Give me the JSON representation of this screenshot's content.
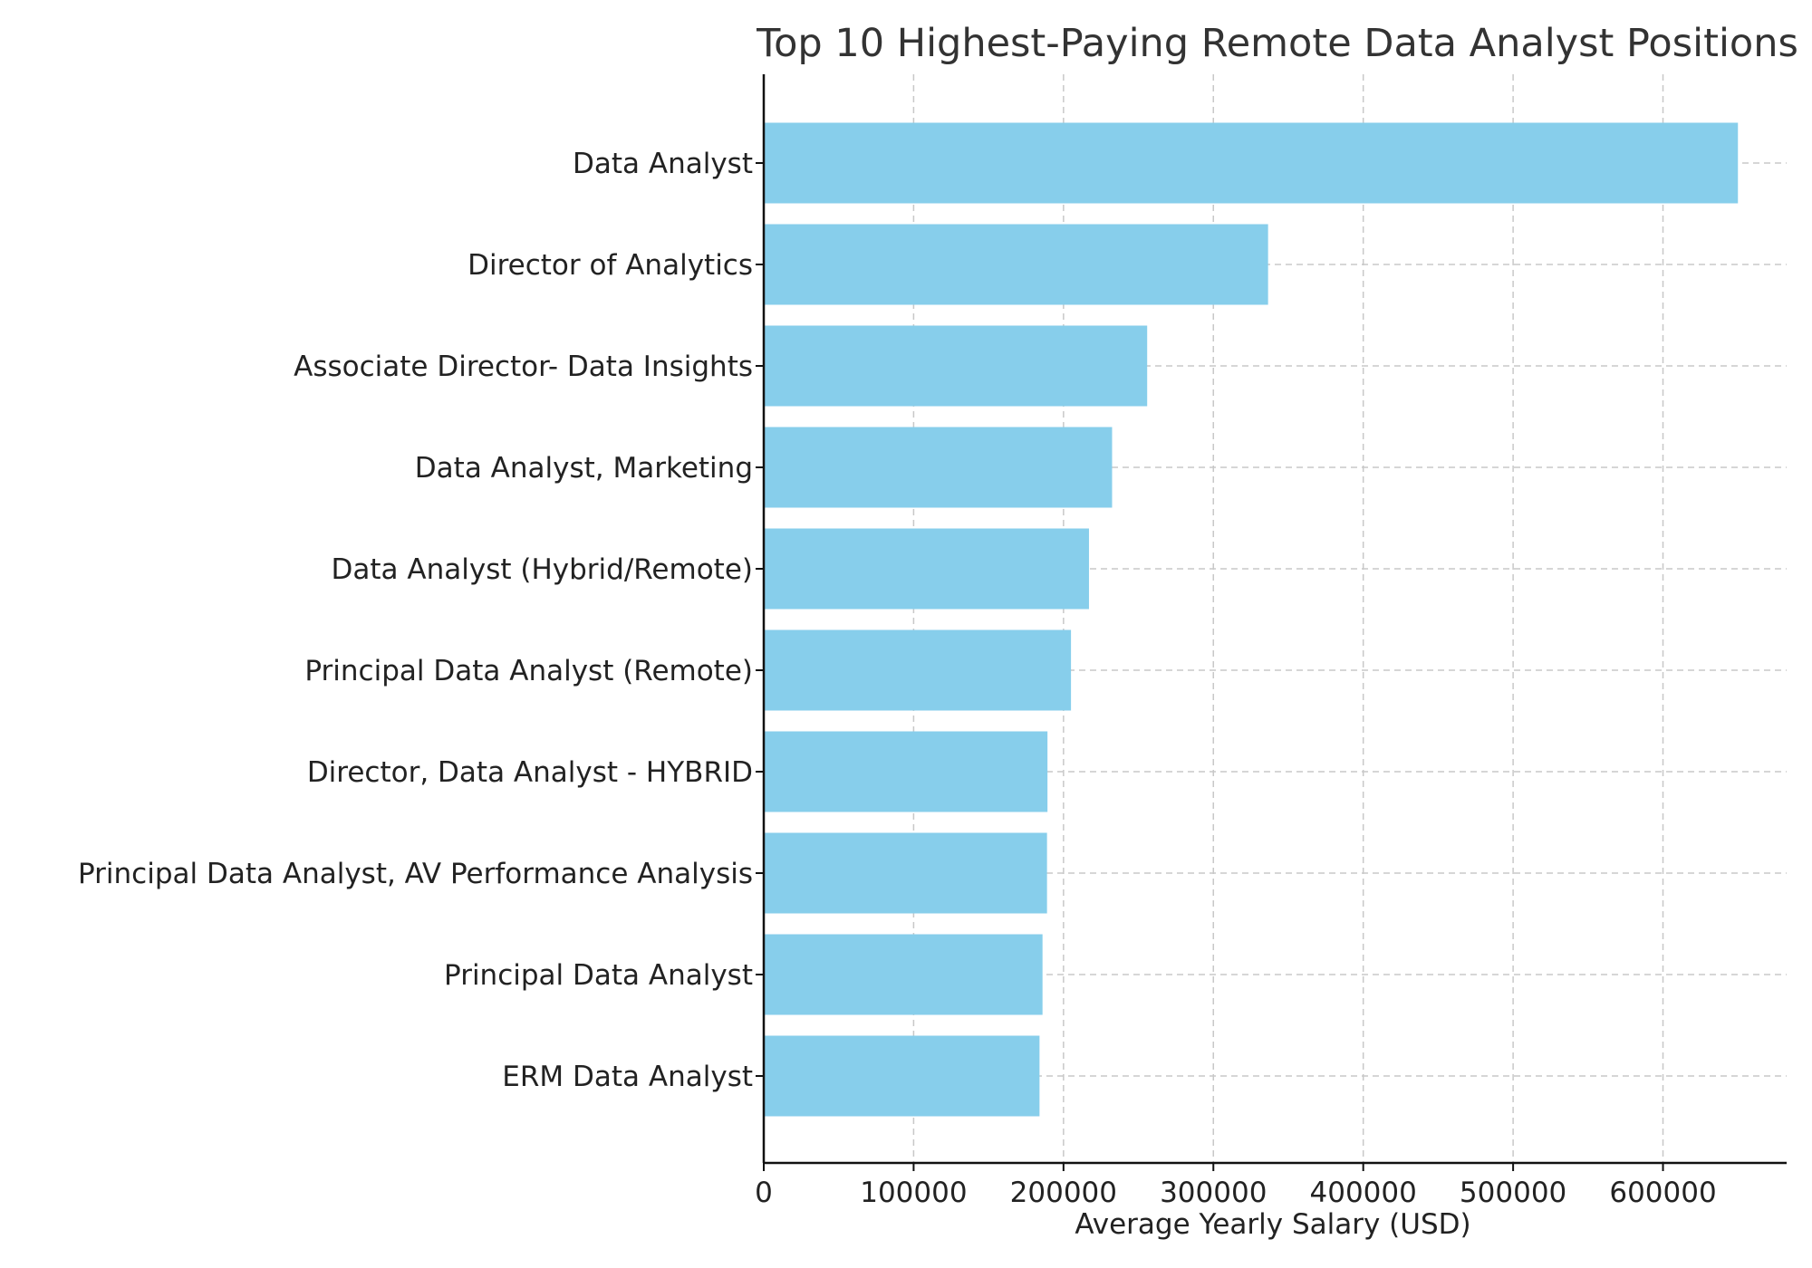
{
  "chart_data": {
    "type": "bar",
    "orientation": "horizontal",
    "title": "Top 10 Highest-Paying Remote Data Analyst Positions",
    "xlabel": "Average Yearly Salary (USD)",
    "ylabel": "",
    "categories": [
      "Data Analyst",
      "Director of Analytics",
      "Associate Director- Data Insights",
      "Data Analyst, Marketing",
      "Data Analyst (Hybrid/Remote)",
      "Principal Data Analyst (Remote)",
      "Director, Data Analyst - HYBRID",
      "Principal Data Analyst, AV Performance Analysis",
      "Principal Data Analyst",
      "ERM Data Analyst"
    ],
    "values": [
      650000,
      336500,
      255830,
      232423,
      217000,
      205000,
      189309,
      189000,
      186000,
      184000
    ],
    "xlim": [
      0,
      682500
    ],
    "xticks": [
      0,
      100000,
      200000,
      300000,
      400000,
      500000,
      600000
    ],
    "xtick_labels": [
      "0",
      "100000",
      "200000",
      "300000",
      "400000",
      "500000",
      "600000"
    ],
    "grid": true,
    "bar_color": "#87ceeb"
  }
}
